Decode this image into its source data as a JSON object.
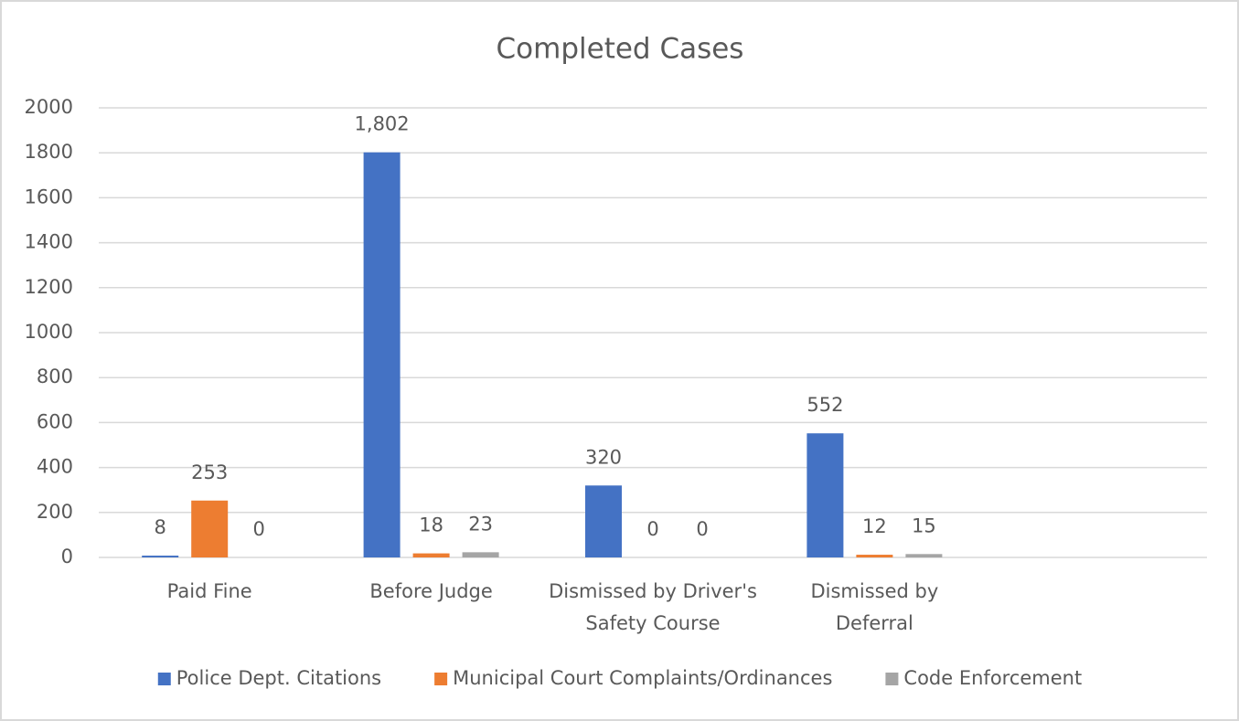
{
  "chart_data": {
    "type": "bar",
    "title": "Completed Cases",
    "categories": [
      "Paid Fine",
      "Before Judge",
      "Dismissed by Driver's Safety Course",
      "Dismissed by Deferral",
      null
    ],
    "series": [
      {
        "name": "Police Dept. Citations",
        "color": "#4472c4",
        "values": [
          8,
          1802,
          320,
          552,
          null
        ],
        "value_labels": [
          "8",
          "1,802",
          "320",
          "552",
          null
        ]
      },
      {
        "name": "Municipal Court Complaints/Ordinances",
        "color": "#ed7d31",
        "values": [
          253,
          18,
          0,
          12,
          null
        ],
        "value_labels": [
          "253",
          "18",
          "0",
          "12",
          null
        ]
      },
      {
        "name": "Code Enforcement",
        "color": "#a5a5a5",
        "values": [
          0,
          23,
          0,
          15,
          null
        ],
        "value_labels": [
          "0",
          "23",
          "0",
          "15",
          null
        ]
      }
    ],
    "ylim": [
      0,
      2000
    ],
    "yticks": [
      0,
      200,
      400,
      600,
      800,
      1000,
      1200,
      1400,
      1600,
      1800,
      2000
    ],
    "grid": true,
    "legend": "bottom"
  }
}
